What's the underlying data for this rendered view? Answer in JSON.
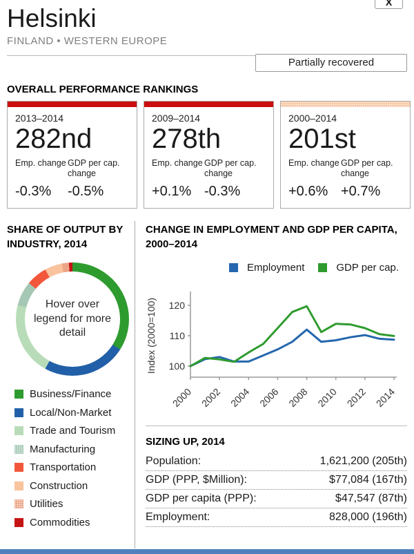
{
  "window": {
    "close_label": "X"
  },
  "header": {
    "title": "Helsinki",
    "subtitle": "FINLAND • WESTERN EUROPE",
    "status_badge": "Partially recovered"
  },
  "rankings": {
    "heading": "OVERALL PERFORMANCE RANKINGS",
    "emp_label": "Emp. change",
    "gdp_label": "GDP per cap. change",
    "cards": [
      {
        "period": "2013–2014",
        "rank": "282nd",
        "emp_value": "-0.3%",
        "gdp_value": "-0.5%",
        "bar_color": "#cb0e0e",
        "bar_textured": false
      },
      {
        "period": "2009–2014",
        "rank": "278th",
        "emp_value": "+0.1%",
        "gdp_value": "-0.3%",
        "bar_color": "#cb0e0e",
        "bar_textured": false
      },
      {
        "period": "2000–2014",
        "rank": "201st",
        "emp_value": "+0.6%",
        "gdp_value": "+0.7%",
        "bar_color": "#f6c7a2",
        "bar_textured": true
      }
    ]
  },
  "chart_data": [
    {
      "type": "pie",
      "title": "SHARE OF OUTPUT BY INDUSTRY, 2014",
      "center_text": "Hover over legend for more detail",
      "legend_position": "below",
      "donut": true,
      "slices": [
        {
          "label": "Business/Finance",
          "value": 34,
          "color": "#2e9b2e",
          "textured": false
        },
        {
          "label": "Local/Non-Market",
          "value": 24,
          "color": "#2160a8",
          "textured": false
        },
        {
          "label": "Trade and Tourism",
          "value": 21,
          "color": "#b8dcb8",
          "textured": false
        },
        {
          "label": "Manufacturing",
          "value": 7,
          "color": "#a5c8b5",
          "textured": true
        },
        {
          "label": "Transportation",
          "value": 6,
          "color": "#f2573c",
          "textured": false
        },
        {
          "label": "Construction",
          "value": 5,
          "color": "#f9c39d",
          "textured": false
        },
        {
          "label": "Utilities",
          "value": 2,
          "color": "#eca486",
          "textured": true
        },
        {
          "label": "Commodities",
          "value": 1,
          "color": "#c41414",
          "textured": false
        }
      ]
    },
    {
      "type": "line",
      "title": "CHANGE IN EMPLOYMENT AND GDP PER CAPITA, 2000–2014",
      "ylabel": "Index (2000=100)",
      "ylim": [
        95,
        124
      ],
      "yticks": [
        100,
        110,
        120
      ],
      "x": [
        2000,
        2001,
        2002,
        2003,
        2004,
        2005,
        2006,
        2007,
        2008,
        2009,
        2010,
        2011,
        2012,
        2013,
        2014
      ],
      "x_tick_labels": [
        "2000",
        "2002",
        "2004",
        "2006",
        "2008",
        "2010",
        "2012",
        "2014"
      ],
      "legend_position": "top-right",
      "grid": false,
      "series": [
        {
          "name": "Employment",
          "color": "#2467ae",
          "values": [
            100,
            102.3,
            103,
            101.5,
            101.5,
            103.5,
            105.5,
            108,
            112,
            108,
            108.5,
            109.5,
            110.2,
            109,
            108.7
          ]
        },
        {
          "name": "GDP per cap.",
          "color": "#2f9b2f",
          "values": [
            100,
            102.7,
            102.2,
            101.4,
            104.5,
            107.3,
            112.5,
            117.8,
            119.7,
            111.2,
            113.9,
            113.7,
            112.5,
            110.5,
            109.9
          ]
        }
      ]
    }
  ],
  "sizing": {
    "heading": "SIZING UP, 2014",
    "rows": [
      {
        "label": "Population:",
        "value": "1,621,200 (205th)"
      },
      {
        "label": "GDP (PPP, $Million):",
        "value": "$77,084 (167th)"
      },
      {
        "label": "GDP per capita (PPP):",
        "value": "$47,547 (87th)"
      },
      {
        "label": "Employment:",
        "value": "828,000 (196th)"
      }
    ]
  },
  "footer": {
    "bar_color": "#4f81bd"
  }
}
